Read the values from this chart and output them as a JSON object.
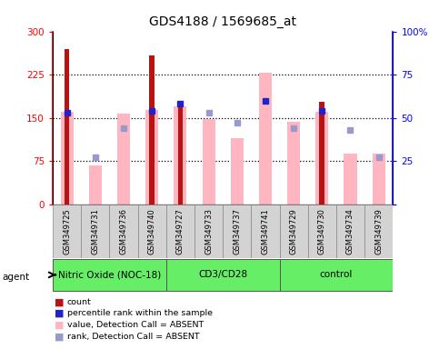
{
  "title": "GDS4188 / 1569685_at",
  "samples": [
    "GSM349725",
    "GSM349731",
    "GSM349736",
    "GSM349740",
    "GSM349727",
    "GSM349733",
    "GSM349737",
    "GSM349741",
    "GSM349729",
    "GSM349730",
    "GSM349734",
    "GSM349739"
  ],
  "groups": [
    {
      "label": "Nitric Oxide (NOC-18)",
      "start": 0,
      "end": 4
    },
    {
      "label": "CD3/CD28",
      "start": 4,
      "end": 8
    },
    {
      "label": "control",
      "start": 8,
      "end": 12
    }
  ],
  "group_color": "#66ee66",
  "count_values": [
    270,
    0,
    0,
    258,
    170,
    0,
    0,
    0,
    0,
    178,
    0,
    0
  ],
  "count_color": "#bb1111",
  "pink_values": [
    160,
    68,
    158,
    163,
    170,
    148,
    114,
    228,
    143,
    160,
    88,
    88
  ],
  "pink_color": "#ffb6c1",
  "blue_dark_rank": [
    53,
    null,
    null,
    54,
    58,
    null,
    null,
    60,
    null,
    54,
    null,
    null
  ],
  "blue_dark_color": "#2222cc",
  "blue_light_rank": [
    null,
    27,
    44,
    null,
    null,
    53,
    47,
    null,
    44,
    null,
    43,
    27
  ],
  "blue_light_color": "#9999cc",
  "ylim_left": [
    0,
    300
  ],
  "ylim_right": [
    0,
    100
  ],
  "yticks_left": [
    0,
    75,
    150,
    225,
    300
  ],
  "yticks_right": [
    0,
    25,
    50,
    75,
    100
  ],
  "grid_values": [
    75,
    150,
    225
  ],
  "legend_items": [
    {
      "label": "count",
      "color": "#bb1111"
    },
    {
      "label": "percentile rank within the sample",
      "color": "#2222cc"
    },
    {
      "label": "value, Detection Call = ABSENT",
      "color": "#ffb6c1"
    },
    {
      "label": "rank, Detection Call = ABSENT",
      "color": "#9999cc"
    }
  ]
}
